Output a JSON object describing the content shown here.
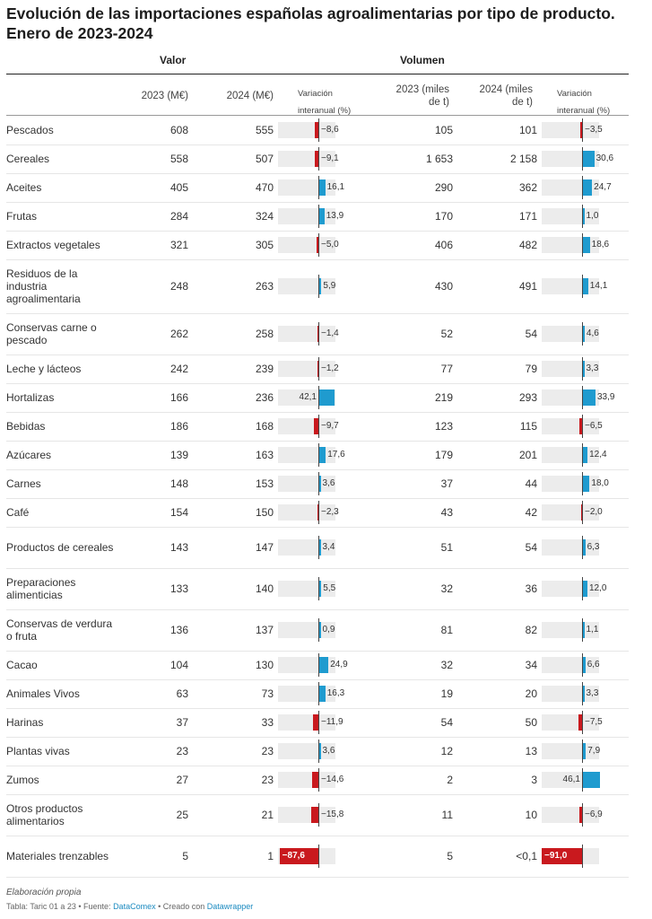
{
  "title": "Evolución de las importaciones españolas agroalimentarias por tipo de producto. Enero de 2023-2024",
  "groups": {
    "valor": "Valor",
    "volumen": "Volumen"
  },
  "columns": {
    "v2023": "2023 (M€)",
    "v2024": "2024 (M€)",
    "var_line1": "Variación",
    "var_line2": "interanual (%)",
    "q2023_line1": "2023 (miles",
    "q2023_line2": "de t)",
    "q2024_line1": "2024 (miles",
    "q2024_line2": "de t)"
  },
  "colors": {
    "positive": "#1f9bcf",
    "negative": "#c9191e",
    "track": "#ececec"
  },
  "chart_data": {
    "type": "table",
    "rows": [
      {
        "name": "Pescados",
        "v2023": "608",
        "v2024": "555",
        "vvar": -8.6,
        "vvar_label": "−8,6",
        "q2023": "105",
        "q2024": "101",
        "qvar": -3.5,
        "qvar_label": "−3,5"
      },
      {
        "name": "Cereales",
        "v2023": "558",
        "v2024": "507",
        "vvar": -9.1,
        "vvar_label": "−9,1",
        "q2023": "1 653",
        "q2024": "2 158",
        "qvar": 30.6,
        "qvar_label": "30,6"
      },
      {
        "name": "Aceites",
        "v2023": "405",
        "v2024": "470",
        "vvar": 16.1,
        "vvar_label": "16,1",
        "q2023": "290",
        "q2024": "362",
        "qvar": 24.7,
        "qvar_label": "24,7"
      },
      {
        "name": "Frutas",
        "v2023": "284",
        "v2024": "324",
        "vvar": 13.9,
        "vvar_label": "13,9",
        "q2023": "170",
        "q2024": "171",
        "qvar": 1.0,
        "qvar_label": "1,0"
      },
      {
        "name": "Extractos vegetales",
        "v2023": "321",
        "v2024": "305",
        "vvar": -5.0,
        "vvar_label": "−5,0",
        "q2023": "406",
        "q2024": "482",
        "qvar": 18.6,
        "qvar_label": "18,6"
      },
      {
        "name": "Residuos de la industria agroalimentaria",
        "v2023": "248",
        "v2024": "263",
        "vvar": 5.9,
        "vvar_label": "5,9",
        "q2023": "430",
        "q2024": "491",
        "qvar": 14.1,
        "qvar_label": "14,1"
      },
      {
        "name": "Conservas carne o pescado",
        "v2023": "262",
        "v2024": "258",
        "vvar": -1.4,
        "vvar_label": "−1,4",
        "q2023": "52",
        "q2024": "54",
        "qvar": 4.6,
        "qvar_label": "4,6"
      },
      {
        "name": "Leche y lácteos",
        "v2023": "242",
        "v2024": "239",
        "vvar": -1.2,
        "vvar_label": "−1,2",
        "q2023": "77",
        "q2024": "79",
        "qvar": 3.3,
        "qvar_label": "3,3"
      },
      {
        "name": "Hortalizas",
        "v2023": "166",
        "v2024": "236",
        "vvar": 42.1,
        "vvar_label": "42,1",
        "q2023": "219",
        "q2024": "293",
        "qvar": 33.9,
        "qvar_label": "33,9"
      },
      {
        "name": "Bebidas",
        "v2023": "186",
        "v2024": "168",
        "vvar": -9.7,
        "vvar_label": "−9,7",
        "q2023": "123",
        "q2024": "115",
        "qvar": -6.5,
        "qvar_label": "−6,5"
      },
      {
        "name": "Azúcares",
        "v2023": "139",
        "v2024": "163",
        "vvar": 17.6,
        "vvar_label": "17,6",
        "q2023": "179",
        "q2024": "201",
        "qvar": 12.4,
        "qvar_label": "12,4"
      },
      {
        "name": "Carnes",
        "v2023": "148",
        "v2024": "153",
        "vvar": 3.6,
        "vvar_label": "3,6",
        "q2023": "37",
        "q2024": "44",
        "qvar": 18.0,
        "qvar_label": "18,0"
      },
      {
        "name": "Café",
        "v2023": "154",
        "v2024": "150",
        "vvar": -2.3,
        "vvar_label": "−2,3",
        "q2023": "43",
        "q2024": "42",
        "qvar": -2.0,
        "qvar_label": "−2,0"
      },
      {
        "name": "Productos de cereales",
        "v2023": "143",
        "v2024": "147",
        "vvar": 3.4,
        "vvar_label": "3,4",
        "q2023": "51",
        "q2024": "54",
        "qvar": 6.3,
        "qvar_label": "6,3"
      },
      {
        "name": "Preparaciones alimenticias",
        "v2023": "133",
        "v2024": "140",
        "vvar": 5.5,
        "vvar_label": "5,5",
        "q2023": "32",
        "q2024": "36",
        "qvar": 12.0,
        "qvar_label": "12,0"
      },
      {
        "name": "Conservas de verdura o fruta",
        "v2023": "136",
        "v2024": "137",
        "vvar": 0.9,
        "vvar_label": "0,9",
        "q2023": "81",
        "q2024": "82",
        "qvar": 1.1,
        "qvar_label": "1,1"
      },
      {
        "name": "Cacao",
        "v2023": "104",
        "v2024": "130",
        "vvar": 24.9,
        "vvar_label": "24,9",
        "q2023": "32",
        "q2024": "34",
        "qvar": 6.6,
        "qvar_label": "6,6"
      },
      {
        "name": "Animales Vivos",
        "v2023": "63",
        "v2024": "73",
        "vvar": 16.3,
        "vvar_label": "16,3",
        "q2023": "19",
        "q2024": "20",
        "qvar": 3.3,
        "qvar_label": "3,3"
      },
      {
        "name": "Harinas",
        "v2023": "37",
        "v2024": "33",
        "vvar": -11.9,
        "vvar_label": "−11,9",
        "q2023": "54",
        "q2024": "50",
        "qvar": -7.5,
        "qvar_label": "−7,5"
      },
      {
        "name": "Plantas vivas",
        "v2023": "23",
        "v2024": "23",
        "vvar": 3.6,
        "vvar_label": "3,6",
        "q2023": "12",
        "q2024": "13",
        "qvar": 7.9,
        "qvar_label": "7,9"
      },
      {
        "name": "Zumos",
        "v2023": "27",
        "v2024": "23",
        "vvar": -14.6,
        "vvar_label": "−14,6",
        "q2023": "2",
        "q2024": "3",
        "qvar": 46.1,
        "qvar_label": "46,1"
      },
      {
        "name": "Otros productos alimentarios",
        "v2023": "25",
        "v2024": "21",
        "vvar": -15.8,
        "vvar_label": "−15,8",
        "q2023": "11",
        "q2024": "10",
        "qvar": -6.9,
        "qvar_label": "−6,9"
      },
      {
        "name": "Materiales trenzables",
        "v2023": "5",
        "v2024": "1",
        "vvar": -87.6,
        "vvar_label": "−87,6",
        "q2023": "5",
        "q2024": "<0,1",
        "qvar": -91.0,
        "qvar_label": "−91,0"
      }
    ]
  },
  "footer": {
    "note": "Elaboración propia",
    "prefix": "Tabla: Taric 01 a 23 • Fuente: ",
    "source_link": "DataComex",
    "middle": " • Creado con ",
    "tool_link": "Datawrapper"
  }
}
